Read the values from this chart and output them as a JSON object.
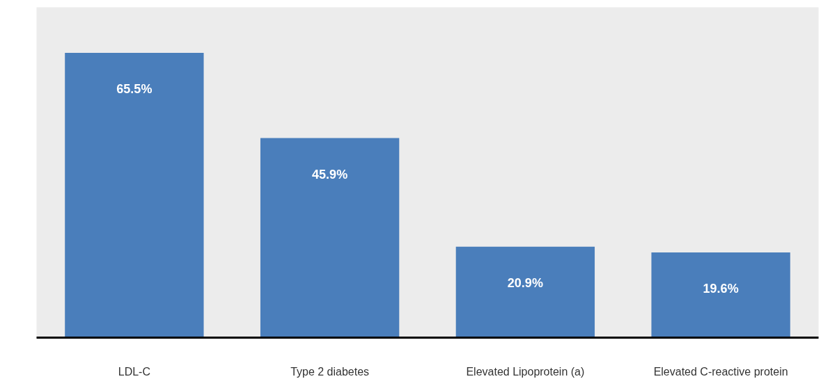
{
  "chart_data": {
    "type": "bar",
    "categories": [
      "LDL-C",
      "Type 2 diabetes",
      "Elevated Lipoprotein (a)",
      "Elevated C-reactive protein"
    ],
    "values": [
      65.5,
      45.9,
      20.9,
      19.6
    ],
    "value_labels": [
      "65.5%",
      "45.9%",
      "20.9%",
      "19.6%"
    ],
    "color": "#4a7ebb"
  }
}
